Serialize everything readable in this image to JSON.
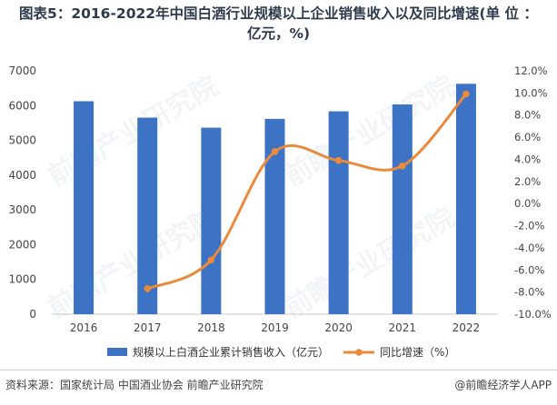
{
  "title_line1": "图表5：2016-2022年中国白酒行业规模以上企业销售收入以及同比增速(单 位 ：",
  "title_line2": "亿元，%)",
  "source": "资料来源：国家统计局 中国酒业协会 前瞻产业研究院",
  "brand": "@前瞻经济学人APP",
  "watermark": "前瞻产业研究院",
  "colors": {
    "bar": "#3c73c4",
    "line": "#ea8a3c",
    "title": "#2f3b4c"
  },
  "chart_data": {
    "type": "bar",
    "categories": [
      "2016",
      "2017",
      "2018",
      "2019",
      "2020",
      "2021",
      "2022"
    ],
    "series": [
      {
        "name": "规模以上白酒企业累计销售收入（亿元）",
        "type": "bar",
        "axis": "left",
        "values": [
          6126,
          5654,
          5364,
          5618,
          5836,
          6033,
          6627
        ]
      },
      {
        "name": "同比增速（%）",
        "type": "line",
        "axis": "right",
        "values": [
          null,
          -7.7,
          -5.1,
          4.7,
          3.9,
          3.4,
          9.9
        ]
      }
    ],
    "y_left": {
      "min": 0,
      "max": 7000,
      "ticks": [
        "0",
        "1000",
        "2000",
        "3000",
        "4000",
        "5000",
        "6000",
        "7000"
      ]
    },
    "y_right": {
      "min": -10,
      "max": 12,
      "ticks": [
        "-10.0%",
        "-8.0%",
        "-6.0%",
        "-4.0%",
        "-2.0%",
        "0.0%",
        "2.0%",
        "4.0%",
        "6.0%",
        "8.0%",
        "10.0%",
        "12.0%"
      ]
    },
    "grid": false,
    "legend": "bottom"
  }
}
